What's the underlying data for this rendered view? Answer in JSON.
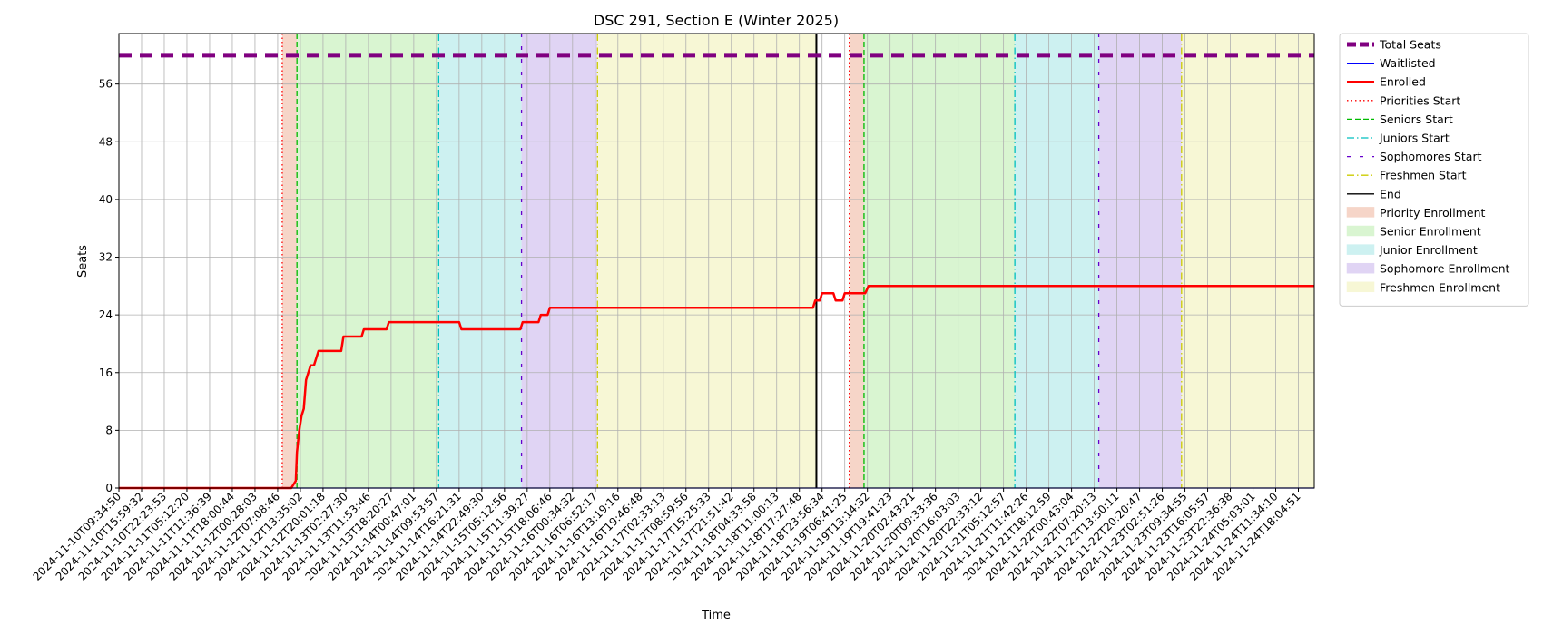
{
  "chart_data": {
    "type": "line",
    "title": "DSC 291, Section E (Winter 2025)",
    "xlabel": "Time",
    "ylabel": "Seats",
    "ylim": [
      0,
      63
    ],
    "yticks": [
      0,
      8,
      16,
      24,
      32,
      40,
      48,
      56
    ],
    "grid": true,
    "legend_position": "outside-right",
    "x_tick_labels": [
      "2024-11-10T09:34:50",
      "2024-11-10T15:59:32",
      "2024-11-10T22:23:53",
      "2024-11-11T05:12:20",
      "2024-11-11T11:36:39",
      "2024-11-11T18:00:44",
      "2024-11-12T00:28:03",
      "2024-11-12T07:08:46",
      "2024-11-12T13:35:02",
      "2024-11-12T20:01:18",
      "2024-11-13T02:27:30",
      "2024-11-13T11:53:46",
      "2024-11-13T18:20:27",
      "2024-11-14T00:47:01",
      "2024-11-14T09:53:57",
      "2024-11-14T16:21:31",
      "2024-11-14T22:49:30",
      "2024-11-15T05:12:56",
      "2024-11-15T11:39:27",
      "2024-11-15T18:06:46",
      "2024-11-16T00:34:32",
      "2024-11-16T06:52:17",
      "2024-11-16T13:19:16",
      "2024-11-16T19:46:48",
      "2024-11-17T02:33:13",
      "2024-11-17T08:59:56",
      "2024-11-17T15:25:33",
      "2024-11-17T21:51:42",
      "2024-11-18T04:33:58",
      "2024-11-18T11:00:13",
      "2024-11-18T17:27:48",
      "2024-11-18T23:56:34",
      "2024-11-19T06:41:25",
      "2024-11-19T13:14:32",
      "2024-11-19T19:41:23",
      "2024-11-20T02:43:21",
      "2024-11-20T09:33:36",
      "2024-11-20T16:03:03",
      "2024-11-20T22:33:12",
      "2024-11-21T05:12:57",
      "2024-11-21T11:42:26",
      "2024-11-21T18:12:59",
      "2024-11-22T00:43:04",
      "2024-11-22T07:20:13",
      "2024-11-22T13:50:11",
      "2024-11-22T20:20:47",
      "2024-11-23T02:51:26",
      "2024-11-23T09:34:55",
      "2024-11-23T16:05:57",
      "2024-11-23T22:36:38",
      "2024-11-24T05:03:01",
      "2024-11-24T11:34:10",
      "2024-11-24T18:04:51"
    ],
    "x_range": [
      0,
      52.7
    ],
    "total_seats": 60,
    "series": [
      {
        "name": "Total Seats",
        "color": "#800080",
        "style": "dashed-thick",
        "points": [
          [
            0,
            60
          ],
          [
            52.7,
            60
          ]
        ]
      },
      {
        "name": "Waitlisted",
        "color": "#0000ff",
        "style": "solid",
        "points": [
          [
            0,
            0
          ],
          [
            52.7,
            0
          ]
        ]
      },
      {
        "name": "Enrolled",
        "color": "#ff0000",
        "style": "solid",
        "points": [
          [
            0,
            0
          ],
          [
            7.6,
            0
          ],
          [
            7.8,
            1
          ],
          [
            7.85,
            5
          ],
          [
            7.95,
            8
          ],
          [
            8.05,
            10
          ],
          [
            8.15,
            11
          ],
          [
            8.25,
            15
          ],
          [
            8.35,
            16
          ],
          [
            8.45,
            17
          ],
          [
            8.6,
            17
          ],
          [
            8.7,
            18
          ],
          [
            8.8,
            19
          ],
          [
            9.8,
            19
          ],
          [
            9.9,
            21
          ],
          [
            10.7,
            21
          ],
          [
            10.8,
            22
          ],
          [
            11.8,
            22
          ],
          [
            11.9,
            23
          ],
          [
            15,
            23
          ],
          [
            15.1,
            22
          ],
          [
            17.7,
            22
          ],
          [
            17.8,
            23
          ],
          [
            18.5,
            23
          ],
          [
            18.6,
            24
          ],
          [
            18.9,
            24
          ],
          [
            19.0,
            25
          ],
          [
            30.6,
            25
          ],
          [
            30.7,
            26
          ],
          [
            30.9,
            26
          ],
          [
            31.0,
            27
          ],
          [
            31.5,
            27
          ],
          [
            31.6,
            26
          ],
          [
            31.9,
            26
          ],
          [
            32.0,
            27
          ],
          [
            32.9,
            27
          ],
          [
            33.05,
            28
          ],
          [
            52.7,
            28
          ]
        ]
      }
    ],
    "markers": [
      {
        "name": "Priorities Start",
        "x": 7.2,
        "color": "#ff0000",
        "style": "dotted"
      },
      {
        "name": "Seniors Start",
        "x": 7.85,
        "color": "#00bb00",
        "style": "dashed"
      },
      {
        "name": "Juniors Start",
        "x": 14.1,
        "color": "#00bfbf",
        "style": "dashdot"
      },
      {
        "name": "Sophomores Start",
        "x": 17.75,
        "color": "#6600cc",
        "style": "loosedash"
      },
      {
        "name": "Freshmen Start",
        "x": 21.1,
        "color": "#cccc00",
        "style": "dashdot"
      },
      {
        "name": "End",
        "x": 30.75,
        "color": "#000000",
        "style": "solid"
      },
      {
        "name": "Priorities Start",
        "x": 32.2,
        "color": "#ff0000",
        "style": "dotted"
      },
      {
        "name": "Seniors Start",
        "x": 32.85,
        "color": "#00bb00",
        "style": "dashed"
      },
      {
        "name": "Juniors Start",
        "x": 39.5,
        "color": "#00bfbf",
        "style": "dashdot"
      },
      {
        "name": "Sophomores Start",
        "x": 43.2,
        "color": "#6600cc",
        "style": "loosedash"
      },
      {
        "name": "Freshmen Start",
        "x": 46.85,
        "color": "#cccc00",
        "style": "dashdot"
      }
    ],
    "bands": [
      {
        "name": "Priority Enrollment",
        "from": 7.2,
        "to": 7.85,
        "color": "#f6d5c8"
      },
      {
        "name": "Senior Enrollment",
        "from": 7.85,
        "to": 14.1,
        "color": "#d9f5d1"
      },
      {
        "name": "Junior Enrollment",
        "from": 14.1,
        "to": 17.75,
        "color": "#cdf1f1"
      },
      {
        "name": "Sophomore Enrollment",
        "from": 17.75,
        "to": 21.1,
        "color": "#e0d4f4"
      },
      {
        "name": "Freshmen Enrollment",
        "from": 21.1,
        "to": 30.75,
        "color": "#f7f7d5"
      },
      {
        "name": "Priority Enrollment",
        "from": 32.2,
        "to": 32.85,
        "color": "#f6d5c8"
      },
      {
        "name": "Senior Enrollment",
        "from": 32.85,
        "to": 39.5,
        "color": "#d9f5d1"
      },
      {
        "name": "Junior Enrollment",
        "from": 39.5,
        "to": 43.2,
        "color": "#cdf1f1"
      },
      {
        "name": "Sophomore Enrollment",
        "from": 43.2,
        "to": 46.85,
        "color": "#e0d4f4"
      },
      {
        "name": "Freshmen Enrollment",
        "from": 46.85,
        "to": 52.7,
        "color": "#f7f7d5"
      }
    ],
    "legend": [
      {
        "label": "Total Seats",
        "kind": "line",
        "color": "#800080",
        "style": "dashed-thick"
      },
      {
        "label": "Waitlisted",
        "kind": "line",
        "color": "#0000ff",
        "style": "solid"
      },
      {
        "label": "Enrolled",
        "kind": "line",
        "color": "#ff0000",
        "style": "solid-thick"
      },
      {
        "label": "Priorities Start",
        "kind": "line",
        "color": "#ff0000",
        "style": "dotted"
      },
      {
        "label": "Seniors Start",
        "kind": "line",
        "color": "#00bb00",
        "style": "dashed"
      },
      {
        "label": "Juniors Start",
        "kind": "line",
        "color": "#00bfbf",
        "style": "dashdot"
      },
      {
        "label": "Sophomores Start",
        "kind": "line",
        "color": "#6600cc",
        "style": "loosedash"
      },
      {
        "label": "Freshmen Start",
        "kind": "line",
        "color": "#cccc00",
        "style": "dashdot"
      },
      {
        "label": "End",
        "kind": "line",
        "color": "#000000",
        "style": "solid"
      },
      {
        "label": "Priority Enrollment",
        "kind": "patch",
        "color": "#f6d5c8"
      },
      {
        "label": "Senior Enrollment",
        "kind": "patch",
        "color": "#d9f5d1"
      },
      {
        "label": "Junior Enrollment",
        "kind": "patch",
        "color": "#cdf1f1"
      },
      {
        "label": "Sophomore Enrollment",
        "kind": "patch",
        "color": "#e0d4f4"
      },
      {
        "label": "Freshmen Enrollment",
        "kind": "patch",
        "color": "#f7f7d5"
      }
    ]
  }
}
